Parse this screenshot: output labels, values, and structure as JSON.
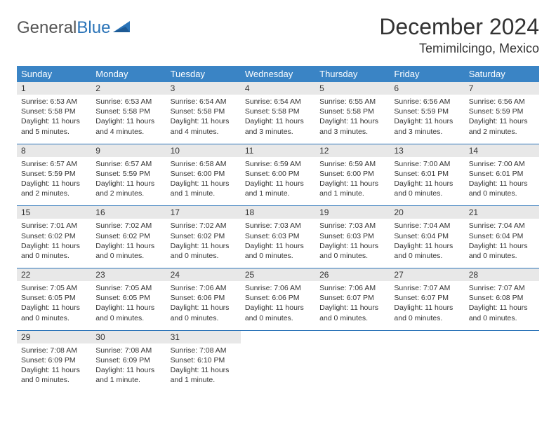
{
  "brand": {
    "name_gray": "General",
    "name_blue": "Blue"
  },
  "title": "December 2024",
  "location": "Temimilcingo, Mexico",
  "colors": {
    "header_bg": "#3a84c5",
    "header_text": "#ffffff",
    "daynum_bg": "#e8e8e8",
    "rule": "#2b74b8",
    "text": "#333333",
    "logo_gray": "#555555",
    "logo_blue": "#2b74b8"
  },
  "day_headers": [
    "Sunday",
    "Monday",
    "Tuesday",
    "Wednesday",
    "Thursday",
    "Friday",
    "Saturday"
  ],
  "weeks": [
    [
      {
        "n": "1",
        "sr": "Sunrise: 6:53 AM",
        "ss": "Sunset: 5:58 PM",
        "d1": "Daylight: 11 hours",
        "d2": "and 5 minutes."
      },
      {
        "n": "2",
        "sr": "Sunrise: 6:53 AM",
        "ss": "Sunset: 5:58 PM",
        "d1": "Daylight: 11 hours",
        "d2": "and 4 minutes."
      },
      {
        "n": "3",
        "sr": "Sunrise: 6:54 AM",
        "ss": "Sunset: 5:58 PM",
        "d1": "Daylight: 11 hours",
        "d2": "and 4 minutes."
      },
      {
        "n": "4",
        "sr": "Sunrise: 6:54 AM",
        "ss": "Sunset: 5:58 PM",
        "d1": "Daylight: 11 hours",
        "d2": "and 3 minutes."
      },
      {
        "n": "5",
        "sr": "Sunrise: 6:55 AM",
        "ss": "Sunset: 5:58 PM",
        "d1": "Daylight: 11 hours",
        "d2": "and 3 minutes."
      },
      {
        "n": "6",
        "sr": "Sunrise: 6:56 AM",
        "ss": "Sunset: 5:59 PM",
        "d1": "Daylight: 11 hours",
        "d2": "and 3 minutes."
      },
      {
        "n": "7",
        "sr": "Sunrise: 6:56 AM",
        "ss": "Sunset: 5:59 PM",
        "d1": "Daylight: 11 hours",
        "d2": "and 2 minutes."
      }
    ],
    [
      {
        "n": "8",
        "sr": "Sunrise: 6:57 AM",
        "ss": "Sunset: 5:59 PM",
        "d1": "Daylight: 11 hours",
        "d2": "and 2 minutes."
      },
      {
        "n": "9",
        "sr": "Sunrise: 6:57 AM",
        "ss": "Sunset: 5:59 PM",
        "d1": "Daylight: 11 hours",
        "d2": "and 2 minutes."
      },
      {
        "n": "10",
        "sr": "Sunrise: 6:58 AM",
        "ss": "Sunset: 6:00 PM",
        "d1": "Daylight: 11 hours",
        "d2": "and 1 minute."
      },
      {
        "n": "11",
        "sr": "Sunrise: 6:59 AM",
        "ss": "Sunset: 6:00 PM",
        "d1": "Daylight: 11 hours",
        "d2": "and 1 minute."
      },
      {
        "n": "12",
        "sr": "Sunrise: 6:59 AM",
        "ss": "Sunset: 6:00 PM",
        "d1": "Daylight: 11 hours",
        "d2": "and 1 minute."
      },
      {
        "n": "13",
        "sr": "Sunrise: 7:00 AM",
        "ss": "Sunset: 6:01 PM",
        "d1": "Daylight: 11 hours",
        "d2": "and 0 minutes."
      },
      {
        "n": "14",
        "sr": "Sunrise: 7:00 AM",
        "ss": "Sunset: 6:01 PM",
        "d1": "Daylight: 11 hours",
        "d2": "and 0 minutes."
      }
    ],
    [
      {
        "n": "15",
        "sr": "Sunrise: 7:01 AM",
        "ss": "Sunset: 6:02 PM",
        "d1": "Daylight: 11 hours",
        "d2": "and 0 minutes."
      },
      {
        "n": "16",
        "sr": "Sunrise: 7:02 AM",
        "ss": "Sunset: 6:02 PM",
        "d1": "Daylight: 11 hours",
        "d2": "and 0 minutes."
      },
      {
        "n": "17",
        "sr": "Sunrise: 7:02 AM",
        "ss": "Sunset: 6:02 PM",
        "d1": "Daylight: 11 hours",
        "d2": "and 0 minutes."
      },
      {
        "n": "18",
        "sr": "Sunrise: 7:03 AM",
        "ss": "Sunset: 6:03 PM",
        "d1": "Daylight: 11 hours",
        "d2": "and 0 minutes."
      },
      {
        "n": "19",
        "sr": "Sunrise: 7:03 AM",
        "ss": "Sunset: 6:03 PM",
        "d1": "Daylight: 11 hours",
        "d2": "and 0 minutes."
      },
      {
        "n": "20",
        "sr": "Sunrise: 7:04 AM",
        "ss": "Sunset: 6:04 PM",
        "d1": "Daylight: 11 hours",
        "d2": "and 0 minutes."
      },
      {
        "n": "21",
        "sr": "Sunrise: 7:04 AM",
        "ss": "Sunset: 6:04 PM",
        "d1": "Daylight: 11 hours",
        "d2": "and 0 minutes."
      }
    ],
    [
      {
        "n": "22",
        "sr": "Sunrise: 7:05 AM",
        "ss": "Sunset: 6:05 PM",
        "d1": "Daylight: 11 hours",
        "d2": "and 0 minutes."
      },
      {
        "n": "23",
        "sr": "Sunrise: 7:05 AM",
        "ss": "Sunset: 6:05 PM",
        "d1": "Daylight: 11 hours",
        "d2": "and 0 minutes."
      },
      {
        "n": "24",
        "sr": "Sunrise: 7:06 AM",
        "ss": "Sunset: 6:06 PM",
        "d1": "Daylight: 11 hours",
        "d2": "and 0 minutes."
      },
      {
        "n": "25",
        "sr": "Sunrise: 7:06 AM",
        "ss": "Sunset: 6:06 PM",
        "d1": "Daylight: 11 hours",
        "d2": "and 0 minutes."
      },
      {
        "n": "26",
        "sr": "Sunrise: 7:06 AM",
        "ss": "Sunset: 6:07 PM",
        "d1": "Daylight: 11 hours",
        "d2": "and 0 minutes."
      },
      {
        "n": "27",
        "sr": "Sunrise: 7:07 AM",
        "ss": "Sunset: 6:07 PM",
        "d1": "Daylight: 11 hours",
        "d2": "and 0 minutes."
      },
      {
        "n": "28",
        "sr": "Sunrise: 7:07 AM",
        "ss": "Sunset: 6:08 PM",
        "d1": "Daylight: 11 hours",
        "d2": "and 0 minutes."
      }
    ],
    [
      {
        "n": "29",
        "sr": "Sunrise: 7:08 AM",
        "ss": "Sunset: 6:09 PM",
        "d1": "Daylight: 11 hours",
        "d2": "and 0 minutes."
      },
      {
        "n": "30",
        "sr": "Sunrise: 7:08 AM",
        "ss": "Sunset: 6:09 PM",
        "d1": "Daylight: 11 hours",
        "d2": "and 1 minute."
      },
      {
        "n": "31",
        "sr": "Sunrise: 7:08 AM",
        "ss": "Sunset: 6:10 PM",
        "d1": "Daylight: 11 hours",
        "d2": "and 1 minute."
      },
      null,
      null,
      null,
      null
    ]
  ]
}
